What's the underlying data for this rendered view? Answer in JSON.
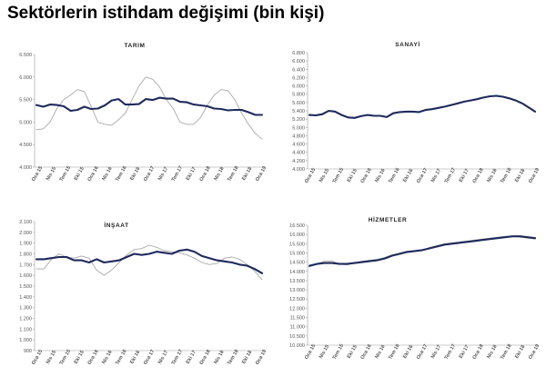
{
  "page": {
    "title": "Sektörlerin istihdam değişimi (bin kişi)"
  },
  "style": {
    "trend_color": "#1f2a5c",
    "raw_color": "#a9a9a9",
    "axis_color": "#999999"
  },
  "chart_data": [
    {
      "type": "line",
      "title": "TARIM",
      "ylim": [
        4000,
        6500
      ],
      "yticks": [
        4000,
        4500,
        5000,
        5500,
        6000,
        6500
      ],
      "yticklabels": [
        "4.000",
        "4.500",
        "5.000",
        "5.500",
        "6.000",
        "6.500"
      ],
      "xticklabels": [
        "Oca 15",
        "Nis 15",
        "Tem 15",
        "Eki 15",
        "Oca 16",
        "Nis 16",
        "Tem 16",
        "Eki 16",
        "Oca 17",
        "Nis 17",
        "Tem 17",
        "Eki 17",
        "Oca 18",
        "Nis 18",
        "Tem 18",
        "Eki 18",
        "Oca 19"
      ],
      "grid": false,
      "legend": "none",
      "series": [
        {
          "role": "trend",
          "values": [
            5380,
            5340,
            5390,
            5380,
            5350,
            5250,
            5270,
            5340,
            5290,
            5300,
            5370,
            5480,
            5510,
            5390,
            5390,
            5400,
            5510,
            5490,
            5540,
            5520,
            5520,
            5450,
            5440,
            5390,
            5370,
            5350,
            5300,
            5290,
            5260,
            5270,
            5270,
            5220,
            5160,
            5160
          ]
        },
        {
          "role": "raw",
          "values": [
            4830,
            4850,
            5000,
            5300,
            5500,
            5600,
            5720,
            5680,
            5350,
            5000,
            4950,
            4930,
            5050,
            5200,
            5500,
            5800,
            6000,
            5950,
            5780,
            5500,
            5300,
            5000,
            4950,
            4950,
            5100,
            5380,
            5600,
            5720,
            5700,
            5500,
            5200,
            4950,
            4750,
            4620
          ]
        }
      ]
    },
    {
      "type": "line",
      "title": "SANAYİ",
      "ylim": [
        4000,
        6800
      ],
      "yticks": [
        4000,
        4200,
        4400,
        4600,
        4800,
        5000,
        5200,
        5400,
        5600,
        5800,
        6000,
        6200,
        6400,
        6600,
        6800
      ],
      "yticklabels": [
        "4.000",
        "4.200",
        "4.400",
        "4.600",
        "4.800",
        "5.000",
        "5.200",
        "5.400",
        "5.600",
        "5.800",
        "6.000",
        "6.200",
        "6.400",
        "6.600",
        "6.800"
      ],
      "xticklabels": [
        "Oca 15",
        "Nis 15",
        "Tem 15",
        "Eki 15",
        "Oca 16",
        "Nis 16",
        "Tem 16",
        "Eki 16",
        "Oca 17",
        "Nis 17",
        "Tem 17",
        "Eki 17",
        "Oca 18",
        "Nis 18",
        "Tem 18",
        "Eki 18",
        "Oca 19"
      ],
      "grid": false,
      "legend": "none",
      "series": [
        {
          "role": "trend",
          "values": [
            5300,
            5290,
            5320,
            5400,
            5380,
            5300,
            5240,
            5230,
            5270,
            5300,
            5280,
            5280,
            5250,
            5340,
            5370,
            5380,
            5380,
            5370,
            5420,
            5440,
            5470,
            5500,
            5540,
            5580,
            5620,
            5650,
            5680,
            5720,
            5750,
            5760,
            5740,
            5700,
            5650,
            5580,
            5480,
            5380
          ]
        },
        {
          "role": "raw",
          "values": [
            5310,
            5280,
            5300,
            5390,
            5380,
            5290,
            5250,
            5220,
            5260,
            5300,
            5290,
            5270,
            5260,
            5330,
            5360,
            5380,
            5390,
            5360,
            5410,
            5450,
            5460,
            5510,
            5550,
            5570,
            5610,
            5660,
            5690,
            5720,
            5740,
            5770,
            5730,
            5700,
            5660,
            5570,
            5470,
            5370
          ]
        }
      ]
    },
    {
      "type": "line",
      "title": "İNŞAAT",
      "ylim": [
        900,
        2100
      ],
      "yticks": [
        900,
        1000,
        1100,
        1200,
        1300,
        1400,
        1500,
        1600,
        1700,
        1800,
        1900,
        2000,
        2100
      ],
      "yticklabels": [
        "900",
        "1.000",
        "1.100",
        "1.200",
        "1.300",
        "1.400",
        "1.500",
        "1.600",
        "1.700",
        "1.800",
        "1.900",
        "2.000",
        "2.100"
      ],
      "xticklabels": [
        "Oca 15",
        "Nis 15",
        "Tem 15",
        "Eki 15",
        "Oca 16",
        "Nis 16",
        "Tem 16",
        "Eki 16",
        "Oca 17",
        "Nis 17",
        "Tem 17",
        "Eki 17",
        "Oca 18",
        "Nis 18",
        "Tem 18",
        "Eki 18",
        "Oca 19"
      ],
      "grid": false,
      "legend": "none",
      "series": [
        {
          "role": "trend",
          "values": [
            1750,
            1750,
            1760,
            1770,
            1770,
            1740,
            1740,
            1720,
            1750,
            1720,
            1730,
            1740,
            1770,
            1800,
            1790,
            1800,
            1820,
            1810,
            1800,
            1830,
            1840,
            1820,
            1780,
            1760,
            1740,
            1730,
            1720,
            1700,
            1690,
            1660,
            1620
          ]
        },
        {
          "role": "raw",
          "values": [
            1660,
            1660,
            1750,
            1800,
            1770,
            1760,
            1780,
            1760,
            1650,
            1600,
            1650,
            1720,
            1790,
            1840,
            1850,
            1880,
            1860,
            1830,
            1820,
            1810,
            1790,
            1760,
            1720,
            1700,
            1710,
            1760,
            1770,
            1750,
            1700,
            1640,
            1560
          ]
        }
      ]
    },
    {
      "type": "line",
      "title": "HİZMETLER",
      "ylim": [
        10000,
        16500
      ],
      "yticks": [
        10000,
        10500,
        11000,
        11500,
        12000,
        12500,
        13000,
        13500,
        14000,
        14500,
        15000,
        15500,
        16000,
        16500
      ],
      "yticklabels": [
        "10.000",
        "10.500",
        "11.000",
        "11.500",
        "12.000",
        "12.500",
        "13.000",
        "13.500",
        "14.000",
        "14.500",
        "15.000",
        "15.500",
        "16.000",
        "16.500"
      ],
      "xticklabels": [
        "Oca 15",
        "Nis 15",
        "Tem 15",
        "Eki 15",
        "Oca 16",
        "Nis 16",
        "Tem 16",
        "Eki 16",
        "Oca 17",
        "Nis 17",
        "Tem 17",
        "Eki 17",
        "Oca 18",
        "Nis 18",
        "Tem 18",
        "Eki 18",
        "Oca 19"
      ],
      "grid": false,
      "legend": "none",
      "series": [
        {
          "role": "trend",
          "values": [
            14300,
            14400,
            14450,
            14450,
            14400,
            14400,
            14450,
            14500,
            14550,
            14600,
            14700,
            14850,
            14950,
            15050,
            15100,
            15150,
            15250,
            15350,
            15450,
            15500,
            15550,
            15600,
            15650,
            15700,
            15750,
            15800,
            15850,
            15900,
            15900,
            15850,
            15800
          ]
        },
        {
          "role": "raw",
          "values": [
            14250,
            14400,
            14550,
            14550,
            14400,
            14350,
            14450,
            14550,
            14600,
            14650,
            14750,
            14900,
            15000,
            15100,
            15100,
            15150,
            15300,
            15400,
            15500,
            15550,
            15600,
            15650,
            15700,
            15750,
            15800,
            15850,
            15900,
            15900,
            15850,
            15800,
            15750
          ]
        }
      ]
    }
  ]
}
